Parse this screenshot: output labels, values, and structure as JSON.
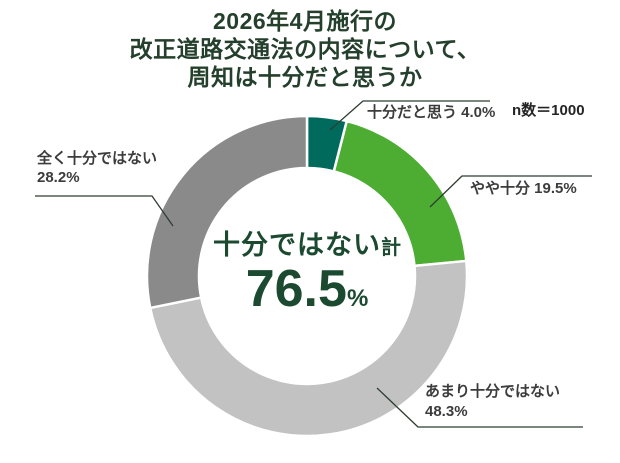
{
  "title": {
    "lines": [
      "2026年4月施行の",
      "改正道路交通法の内容について、",
      "周知は十分だと思うか"
    ]
  },
  "sample_label": "n数＝1000",
  "center": {
    "label_main": "十分ではない",
    "label_suffix": "計",
    "value": "76.5",
    "unit": "%"
  },
  "callouts": {
    "sufficient": {
      "text": "十分だと思う 4.0%"
    },
    "somewhat": {
      "text": "やや十分 19.5%"
    },
    "not_really": {
      "line1": "あまり十分ではない",
      "line2": "48.3%"
    },
    "not_at_all": {
      "line1": "全く十分ではない",
      "line2": "28.2%"
    }
  },
  "chart_data": {
    "type": "pie",
    "subtype": "donut",
    "title": "2026年4月施行の改正道路交通法の内容について、周知は十分だと思うか",
    "n": 1000,
    "start_angle_deg": 0,
    "direction": "clockwise",
    "inner_radius_ratio": 0.675,
    "segments": [
      {
        "label": "十分だと思う",
        "value": 4.0,
        "color": "#006b5c"
      },
      {
        "label": "やや十分",
        "value": 19.5,
        "color": "#4dad33"
      },
      {
        "label": "あまり十分ではない",
        "value": 48.3,
        "color": "#c2c2c2"
      },
      {
        "label": "全く十分ではない",
        "value": 28.2,
        "color": "#8a8a8a"
      }
    ],
    "center_annotation": {
      "label": "十分ではない計",
      "value": 76.5,
      "unit": "%"
    },
    "colors": {
      "title_text": "#24402c",
      "center_text": "#1b4a31",
      "label_text": "#3c3c3c",
      "leader_line": "#2f3e33",
      "background": "#ffffff"
    }
  }
}
